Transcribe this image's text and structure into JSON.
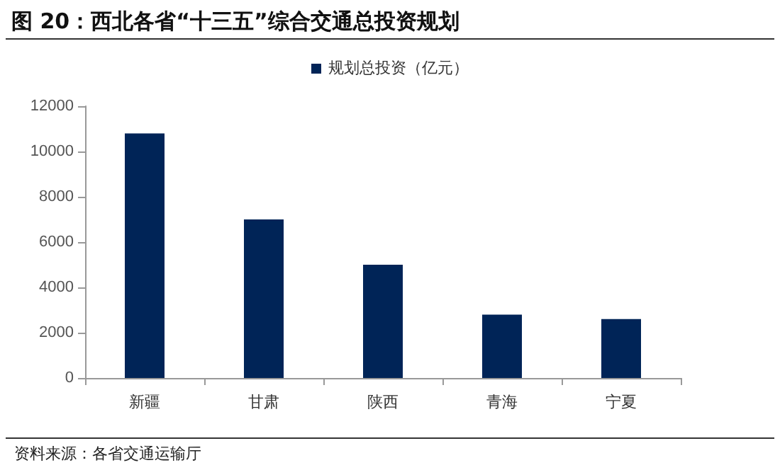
{
  "chart_data": {
    "type": "bar",
    "title": "图 20：西北各省“十三五”综合交通总投资规划",
    "categories": [
      "新疆",
      "甘肃",
      "陕西",
      "青海",
      "宁夏"
    ],
    "series": [
      {
        "name": "规划总投资（亿元）",
        "color": "#002457",
        "values": [
          10800,
          7000,
          5000,
          2800,
          2600
        ]
      }
    ],
    "ylim": [
      0,
      12000
    ],
    "yticks": [
      0,
      2000,
      4000,
      6000,
      8000,
      10000,
      12000
    ],
    "grid": false,
    "legend": "top",
    "annotations": [
      "资料来源：各省交通运输厅"
    ]
  }
}
